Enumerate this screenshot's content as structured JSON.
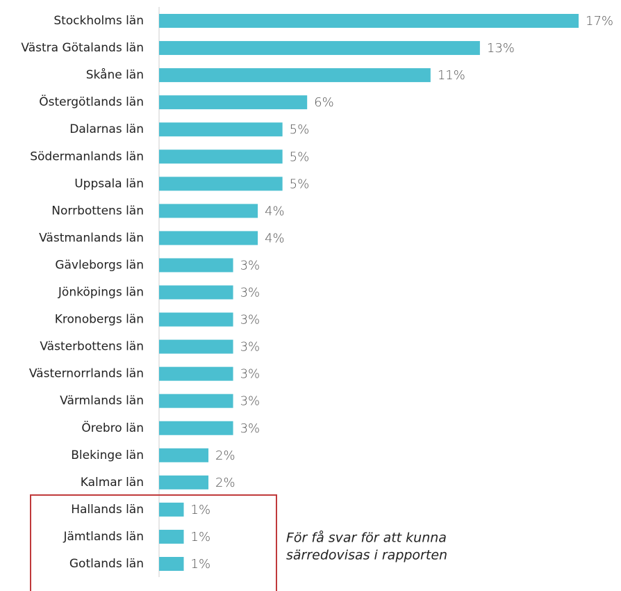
{
  "chart_data": {
    "type": "bar",
    "orientation": "horizontal",
    "color": "#4bbfd0",
    "categories": [
      "Stockholms län",
      "Västra Götalands län",
      "Skåne län",
      "Östergötlands län",
      "Dalarnas län",
      "Södermanlands län",
      "Uppsala län",
      "Norrbottens län",
      "Västmanlands län",
      "Gävleborgs län",
      "Jönköpings län",
      "Kronobergs län",
      "Västerbottens län",
      "Västernorrlands län",
      "Värmlands län",
      "Örebro län",
      "Blekinge län",
      "Kalmar län",
      "Hallands län",
      "Jämtlands län",
      "Gotlands län"
    ],
    "values": [
      17,
      13,
      11,
      6,
      5,
      5,
      5,
      4,
      4,
      3,
      3,
      3,
      3,
      3,
      3,
      3,
      2,
      2,
      1,
      1,
      1
    ],
    "value_labels": [
      "17%",
      "13%",
      "11%",
      "6%",
      "5%",
      "5%",
      "5%",
      "4%",
      "4%",
      "3%",
      "3%",
      "3%",
      "3%",
      "3%",
      "3%",
      "3%",
      "2%",
      "2%",
      "1%",
      "1%",
      "1%"
    ],
    "annotation": [
      "För få svar för att kunna",
      "särredovisas i rapporten"
    ]
  }
}
